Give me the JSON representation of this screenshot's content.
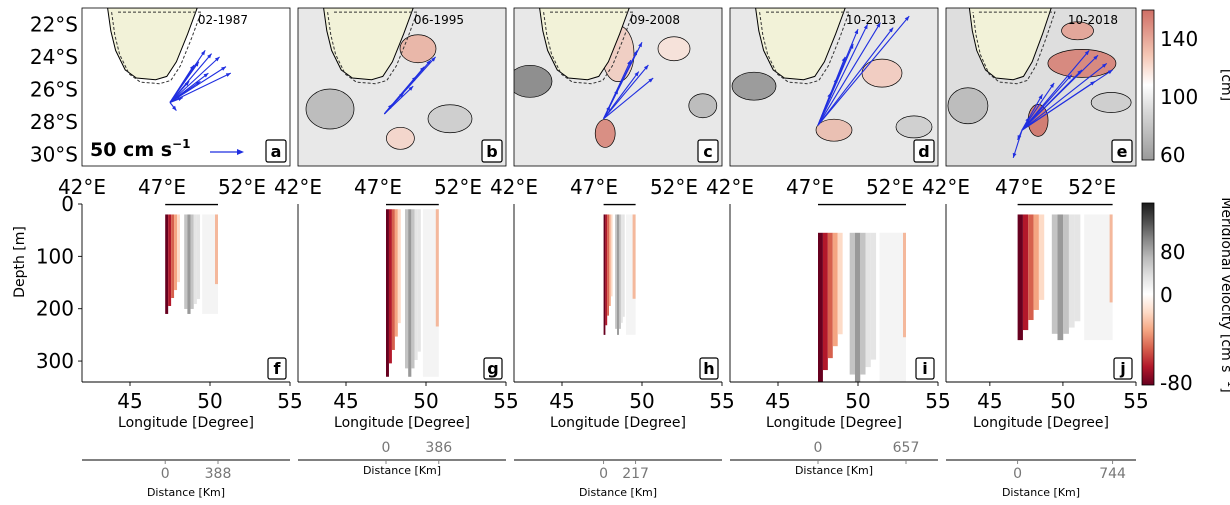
{
  "chart_data": [
    {
      "type": "map",
      "description_role": "top row: sea level maps with current vectors",
      "yticks": [
        "22°S",
        "24°S",
        "26°S",
        "28°S",
        "30°S"
      ],
      "xticks": [
        "42°E",
        "47°E",
        "52°E"
      ],
      "scale_label": "50 cm s",
      "scale_exponent": "−1",
      "colorbar": {
        "ticks": [
          "140",
          "100",
          "60"
        ],
        "unit": "[cm]",
        "range": [
          50,
          160
        ]
      },
      "panels": [
        {
          "letter": "a",
          "date": "02-1987"
        },
        {
          "letter": "b",
          "date": "06-1995"
        },
        {
          "letter": "c",
          "date": "09-2008"
        },
        {
          "letter": "d",
          "date": "10-2013"
        },
        {
          "letter": "e",
          "date": "10-2018"
        }
      ]
    },
    {
      "type": "heatmap",
      "description_role": "bottom row: meridional velocity sections",
      "ylabel": "Depth [m]",
      "yticks": [
        "0",
        "100",
        "200",
        "300"
      ],
      "ylim": [
        0,
        340
      ],
      "xlabel": "Longitude [Degree]",
      "xticks": [
        "45",
        "50",
        "55"
      ],
      "xlim": [
        42,
        55
      ],
      "colorbar": {
        "label": "Meridional velocity [cm s",
        "label_exponent": "−1",
        "ticks": [
          "80",
          "0",
          "-80"
        ],
        "range": [
          -100,
          100
        ]
      },
      "distance_axis_label": "Distance [Km]",
      "panels": [
        {
          "letter": "f",
          "lon_range": [
            47.2,
            50.5
          ],
          "depth_range": [
            20,
            210
          ],
          "dist_ticks": [
            "0",
            "388"
          ]
        },
        {
          "letter": "g",
          "lon_range": [
            47.5,
            50.8
          ],
          "depth_range": [
            10,
            330
          ],
          "dist_ticks": [
            "0",
            "386"
          ]
        },
        {
          "letter": "h",
          "lon_range": [
            47.6,
            49.6
          ],
          "depth_range": [
            20,
            250
          ],
          "dist_ticks": [
            "0",
            "217"
          ]
        },
        {
          "letter": "i",
          "lon_range": [
            47.5,
            53.0
          ],
          "depth_range": [
            55,
            340
          ],
          "dist_ticks": [
            "0",
            "657"
          ]
        },
        {
          "letter": "j",
          "lon_range": [
            46.9,
            53.4
          ],
          "depth_range": [
            20,
            260
          ],
          "dist_ticks": [
            "0",
            "744"
          ]
        }
      ]
    }
  ],
  "colors": {
    "land": "#f2f2d8",
    "vector": "#1f2ee0",
    "positive_dark": "#67001f",
    "negative_dark": "#1a1a1a"
  }
}
